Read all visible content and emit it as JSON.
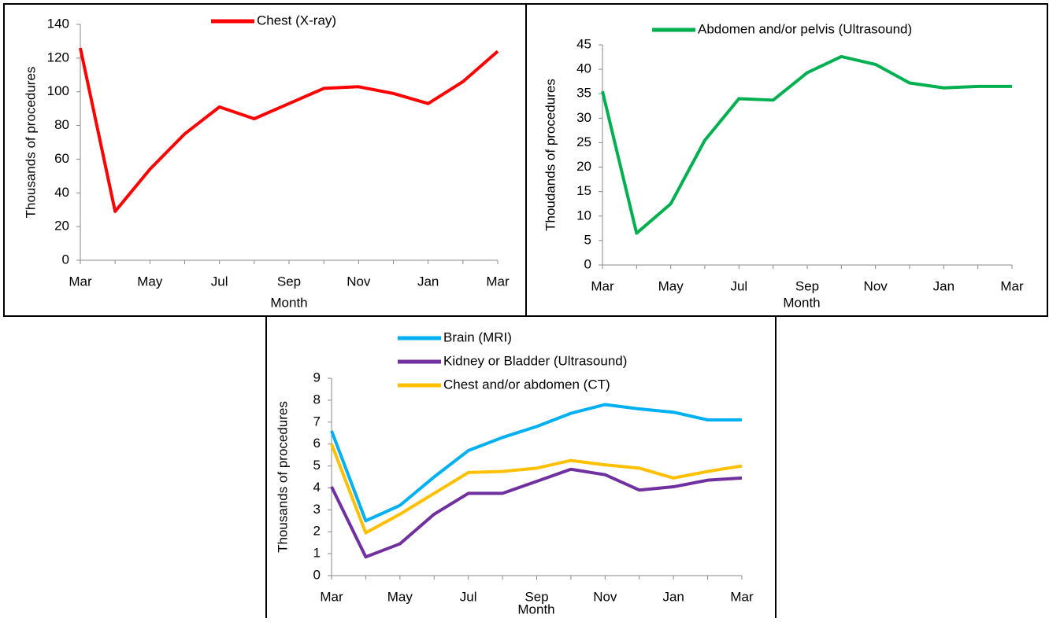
{
  "chart_data": [
    {
      "type": "line",
      "x_label": "Month",
      "y_label": "Thousands  of procedures",
      "categories": [
        "Mar",
        null,
        "May",
        null,
        "Jul",
        null,
        "Sep",
        null,
        "Nov",
        null,
        "Jan",
        null,
        "Mar"
      ],
      "series": [
        {
          "name": "Chest (X-ray)",
          "color": "#ff0000",
          "values": [
            126,
            29,
            54,
            75,
            91,
            84,
            93,
            102,
            103,
            99,
            93,
            106,
            124
          ]
        }
      ],
      "ylim": [
        0,
        140
      ],
      "yticks": [
        0,
        20,
        40,
        60,
        80,
        100,
        120,
        140
      ]
    },
    {
      "type": "line",
      "x_label": "Month",
      "y_label": "Thoudands  of procedures",
      "categories": [
        "Mar",
        null,
        "May",
        null,
        "Jul",
        null,
        "Sep",
        null,
        "Nov",
        null,
        "Jan",
        null,
        "Mar"
      ],
      "series": [
        {
          "name": "Abdomen and/or pelvis (Ultrasound)",
          "color": "#00b050",
          "values": [
            35.5,
            6.5,
            12.5,
            25.5,
            34,
            33.7,
            39.3,
            42.6,
            41,
            37.2,
            36.2,
            36.5,
            36.5
          ]
        }
      ],
      "ylim": [
        0,
        45
      ],
      "yticks": [
        0,
        5,
        10,
        15,
        20,
        25,
        30,
        35,
        40,
        45
      ]
    },
    {
      "type": "line",
      "x_label": "Month",
      "y_label": "Thousands of procedures",
      "categories": [
        "Mar",
        null,
        "May",
        null,
        "Jul",
        null,
        "Sep",
        null,
        "Nov",
        null,
        "Jan",
        null,
        "Mar"
      ],
      "series": [
        {
          "name": "Brain (MRI)",
          "color": "#00b0f0",
          "values": [
            6.6,
            2.5,
            3.2,
            4.5,
            5.7,
            6.3,
            6.8,
            7.4,
            7.8,
            7.6,
            7.45,
            7.1,
            7.1
          ]
        },
        {
          "name": "Kidney or Bladder (Ultrasound)",
          "color": "#7030a0",
          "values": [
            4.05,
            0.85,
            1.45,
            2.8,
            3.75,
            3.75,
            4.3,
            4.85,
            4.6,
            3.9,
            4.05,
            4.35,
            4.45
          ]
        },
        {
          "name": "Chest and/or abdomen (CT)",
          "color": "#ffc000",
          "values": [
            6.0,
            1.95,
            2.8,
            3.75,
            4.7,
            4.75,
            4.9,
            5.25,
            5.05,
            4.9,
            4.45,
            4.75,
            5.0
          ]
        }
      ],
      "ylim": [
        0,
        9
      ],
      "yticks": [
        0,
        1,
        2,
        3,
        4,
        5,
        6,
        7,
        8,
        9
      ]
    }
  ]
}
